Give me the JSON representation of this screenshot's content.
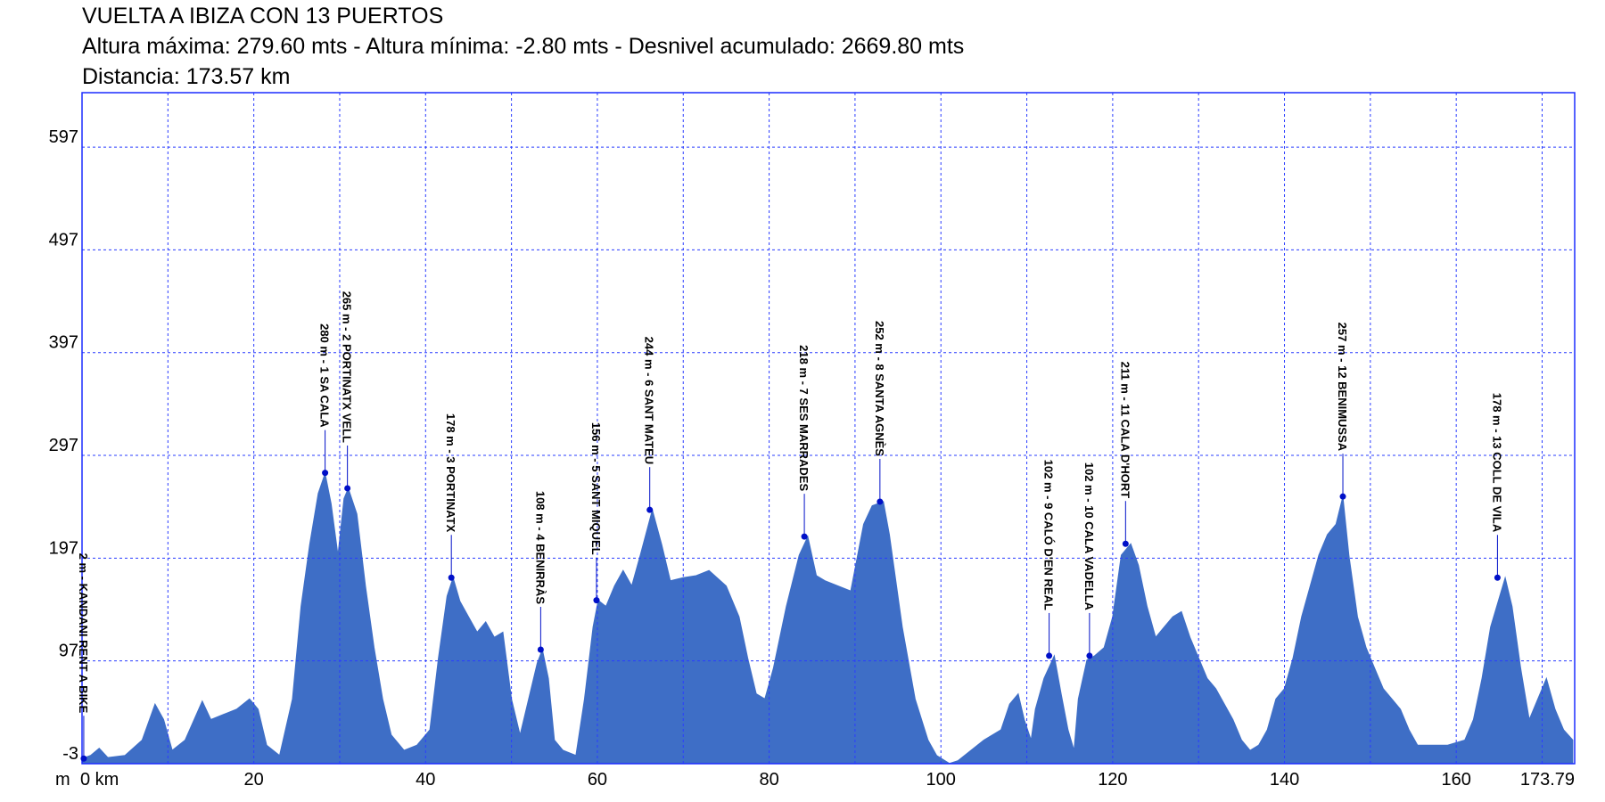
{
  "chart_data": {
    "type": "area",
    "title": "VUELTA A IBIZA CON 13 PUERTOS",
    "subtitle": "Altura máxima: 279.60 mts - Altura mínima: -2.80 mts - Desnivel acumulado: 2669.80 mts",
    "distance": "Distancia: 173.57 km",
    "y_label": "m",
    "color": "#3e6ec6",
    "frame_color": "#1a2cff",
    "point_color": "#0010c8",
    "grid": true,
    "xlim": [
      0,
      173.79
    ],
    "ylim": [
      -3,
      650
    ],
    "xticks": [
      {
        "value": 0,
        "label": "0 km"
      },
      20,
      40,
      60,
      80,
      100,
      120,
      140,
      160,
      173.79
    ],
    "xgrid": [
      10,
      20,
      30,
      40,
      50,
      60,
      70,
      80,
      90,
      100,
      110,
      120,
      130,
      140,
      150,
      160,
      170
    ],
    "yticks": [
      -3,
      97,
      197,
      297,
      397,
      497,
      597
    ],
    "x": [
      0,
      1,
      2,
      3,
      5,
      7,
      8.5,
      9.5,
      10.5,
      12,
      14,
      15,
      16.5,
      18,
      19.5,
      20.5,
      21.5,
      23,
      24.5,
      25.5,
      26.5,
      27.5,
      28.3,
      29,
      29.8,
      30.5,
      31,
      32,
      33,
      34,
      35,
      36,
      37.5,
      39,
      40.5,
      41.5,
      42.5,
      43.2,
      44,
      45,
      46,
      47,
      48,
      49,
      50,
      51,
      52,
      53,
      53.6,
      54.3,
      55,
      56,
      57.5,
      58.5,
      59.5,
      60.1,
      61,
      62,
      63,
      64,
      65,
      66.4,
      67.5,
      68.5,
      70,
      71.5,
      73,
      75,
      76.5,
      77.5,
      78.5,
      79.5,
      80.5,
      82,
      83.5,
      84.5,
      85.5,
      86.5,
      88,
      89.5,
      91,
      92,
      93.3,
      94,
      95.5,
      97,
      98.5,
      99.5,
      101,
      102,
      103.5,
      105,
      107,
      108,
      109,
      109.7,
      110.5,
      111,
      112,
      113.2,
      114,
      114.8,
      115.5,
      116,
      117,
      117.9,
      119,
      120,
      121,
      122.1,
      123,
      124,
      125,
      126,
      127,
      128,
      129,
      130,
      131,
      132,
      133,
      134,
      135,
      136,
      137,
      138,
      139,
      140,
      141,
      142,
      143,
      144,
      145,
      146,
      146.8,
      147.5,
      148.5,
      149.5,
      150.5,
      151.5,
      152.5,
      153.5,
      154.5,
      155.5,
      157,
      159,
      161,
      162,
      163,
      164,
      165.7,
      166.5,
      167.5,
      168.5,
      169.5,
      170.5,
      171.5,
      172.5,
      173.57
    ],
    "values": [
      2,
      5,
      12,
      3,
      5,
      20,
      55,
      40,
      10,
      20,
      58,
      40,
      45,
      50,
      60,
      50,
      15,
      5,
      60,
      150,
      210,
      260,
      279.6,
      250,
      200,
      255,
      265,
      240,
      170,
      110,
      60,
      25,
      10,
      15,
      30,
      100,
      160,
      178,
      155,
      140,
      125,
      135,
      120,
      125,
      60,
      25,
      60,
      95,
      108,
      80,
      20,
      10,
      5,
      60,
      130,
      156,
      150,
      170,
      185,
      170,
      200,
      244,
      210,
      175,
      178,
      180,
      185,
      170,
      140,
      100,
      65,
      60,
      90,
      150,
      200,
      218,
      180,
      175,
      170,
      165,
      230,
      248,
      252,
      220,
      130,
      60,
      20,
      5,
      -2.8,
      0,
      10,
      20,
      30,
      55,
      65,
      40,
      20,
      50,
      80,
      102,
      65,
      30,
      10,
      60,
      98,
      102,
      110,
      140,
      200,
      211,
      190,
      150,
      120,
      130,
      140,
      145,
      120,
      100,
      80,
      70,
      55,
      40,
      20,
      10,
      15,
      30,
      60,
      70,
      100,
      140,
      170,
      200,
      220,
      230,
      257,
      200,
      140,
      110,
      90,
      70,
      60,
      50,
      30,
      15,
      15,
      15,
      20,
      40,
      80,
      130,
      178,
      150,
      90,
      40,
      60,
      80,
      50,
      30,
      20
    ],
    "annotations": [
      {
        "text": "2 m - KANDANI RENT A BIKE",
        "x": 0.2,
        "y": 2
      },
      {
        "text": "280 m - 1 SA CALA",
        "x": 28.3,
        "y": 280
      },
      {
        "text": "265 m - 2 PORTINATX VELL",
        "x": 30.9,
        "y": 265
      },
      {
        "text": "178 m - 3 PORTINATX",
        "x": 43.0,
        "y": 178
      },
      {
        "text": "108 m - 4 BENIRRÀS",
        "x": 53.4,
        "y": 108
      },
      {
        "text": "156 m - 5 SANT MIQUEL",
        "x": 59.9,
        "y": 156
      },
      {
        "text": "244 m - 6 SANT MATEU",
        "x": 66.1,
        "y": 244
      },
      {
        "text": "218 m - 7 SES MARRADES",
        "x": 84.1,
        "y": 218
      },
      {
        "text": "252 m - 8 SANTA AGNÈS",
        "x": 92.9,
        "y": 252
      },
      {
        "text": "102 m - 9 CALÓ D'EN REAL",
        "x": 112.6,
        "y": 102
      },
      {
        "text": "102 m - 10 CALA VADELLA",
        "x": 117.3,
        "y": 102
      },
      {
        "text": "211 m - 11 CALA D'HORT",
        "x": 121.5,
        "y": 211
      },
      {
        "text": "257 m - 12 BENIMUSSA",
        "x": 146.8,
        "y": 257
      },
      {
        "text": "178 m - 13 COLL DE VILA",
        "x": 164.8,
        "y": 178
      }
    ]
  }
}
